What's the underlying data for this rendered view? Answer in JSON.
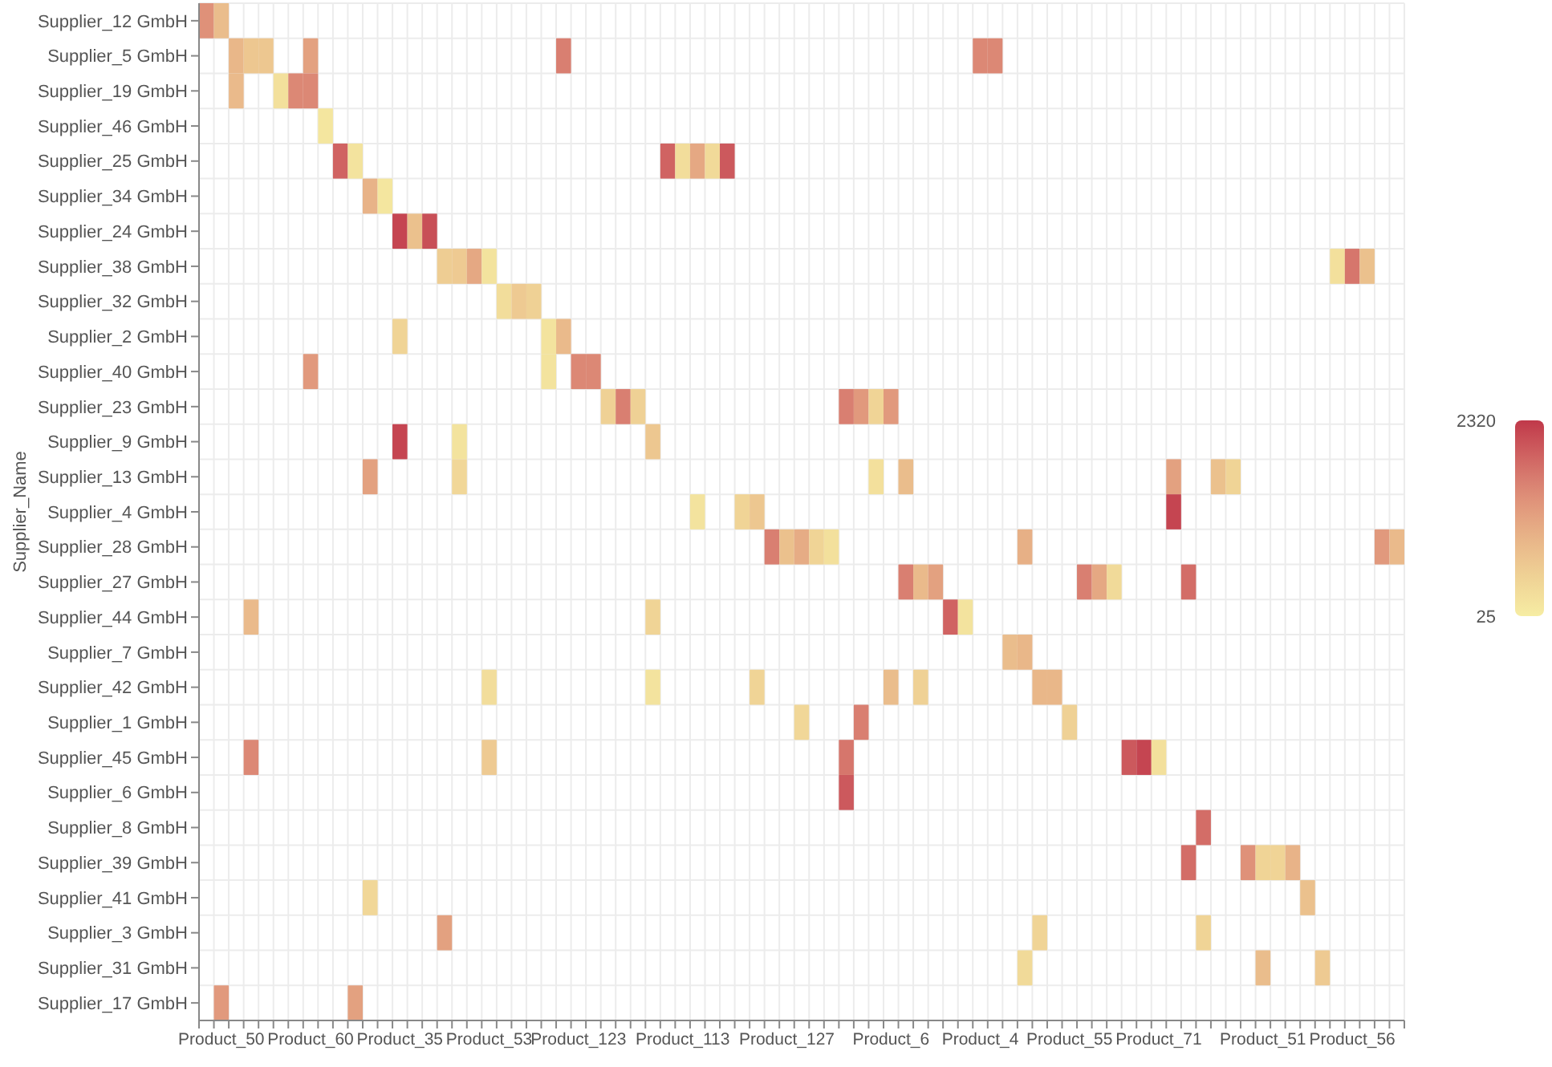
{
  "chart_data": {
    "type": "heatmap",
    "ylabel": "Supplier_Name",
    "grid": true,
    "clim": [
      25,
      2320
    ],
    "cticks": [
      25,
      2320
    ],
    "categories": [
      null,
      "Product_50",
      null,
      null,
      null,
      null,
      null,
      "Product_60",
      null,
      null,
      null,
      null,
      null,
      "Product_35",
      null,
      null,
      null,
      null,
      null,
      "Product_53",
      null,
      null,
      null,
      null,
      null,
      "Product_123",
      null,
      null,
      null,
      null,
      null,
      null,
      "Product_113",
      null,
      null,
      null,
      null,
      null,
      null,
      "Product_127",
      null,
      null,
      null,
      null,
      null,
      null,
      "Product_6",
      null,
      null,
      null,
      null,
      null,
      "Product_4",
      null,
      null,
      null,
      null,
      null,
      "Product_55",
      null,
      null,
      null,
      null,
      null,
      "Product_71",
      null,
      null,
      null,
      null,
      null,
      null,
      "Product_51",
      null,
      null,
      null,
      null,
      null,
      "Product_56",
      null,
      null,
      null
    ],
    "y_categories": [
      "Supplier_12 GmbH",
      "Supplier_5 GmbH",
      "Supplier_19 GmbH",
      "Supplier_46 GmbH",
      "Supplier_25 GmbH",
      "Supplier_34 GmbH",
      "Supplier_24 GmbH",
      "Supplier_38 GmbH",
      "Supplier_32 GmbH",
      "Supplier_2 GmbH",
      "Supplier_40 GmbH",
      "Supplier_23 GmbH",
      "Supplier_9 GmbH",
      "Supplier_13 GmbH",
      "Supplier_4 GmbH",
      "Supplier_28 GmbH",
      "Supplier_27 GmbH",
      "Supplier_44 GmbH",
      "Supplier_7 GmbH",
      "Supplier_42 GmbH",
      "Supplier_1 GmbH",
      "Supplier_45 GmbH",
      "Supplier_6 GmbH",
      "Supplier_8 GmbH",
      "Supplier_39 GmbH",
      "Supplier_41 GmbH",
      "Supplier_3 GmbH",
      "Supplier_31 GmbH",
      "Supplier_17 GmbH"
    ],
    "cells": [
      [
        1400,
        800,
        null,
        null,
        null,
        null,
        null,
        null,
        null,
        null,
        null,
        null,
        null,
        null,
        null,
        null,
        null,
        null,
        null,
        null,
        null,
        null,
        null,
        null,
        null,
        null,
        null,
        null,
        null,
        null,
        null,
        null,
        null,
        null,
        null,
        null,
        null,
        null,
        null,
        null,
        null,
        null,
        null,
        null,
        null,
        null,
        null,
        null,
        null,
        null,
        null,
        null,
        null,
        null,
        null,
        null,
        null,
        null,
        null,
        null,
        null,
        null,
        null,
        null,
        null,
        null,
        null,
        null,
        null,
        null,
        null,
        null,
        null,
        null,
        null,
        null,
        null,
        null,
        null,
        null,
        null
      ],
      [
        null,
        null,
        900,
        650,
        650,
        null,
        null,
        1200,
        null,
        null,
        null,
        null,
        null,
        null,
        null,
        null,
        null,
        null,
        null,
        null,
        null,
        null,
        null,
        null,
        1600,
        null,
        null,
        null,
        null,
        null,
        null,
        null,
        null,
        null,
        null,
        null,
        null,
        null,
        null,
        null,
        null,
        null,
        null,
        null,
        null,
        null,
        null,
        null,
        null,
        null,
        null,
        null,
        1500,
        1500,
        null,
        null,
        null,
        null,
        null,
        null,
        null,
        null,
        null,
        null,
        null,
        null,
        null,
        null,
        null,
        null,
        null,
        null,
        null,
        null,
        null,
        null,
        null,
        null,
        null,
        null,
        null
      ],
      [
        null,
        null,
        850,
        null,
        null,
        250,
        1500,
        1500,
        null,
        null,
        null,
        null,
        null,
        null,
        null,
        null,
        null,
        null,
        null,
        null,
        null,
        null,
        null,
        null,
        null,
        null,
        null,
        null,
        null,
        null,
        null,
        null,
        null,
        null,
        null,
        null,
        null,
        null,
        null,
        null,
        null,
        null,
        null,
        null,
        null,
        null,
        null,
        null,
        null,
        null,
        null,
        null,
        null,
        null,
        null,
        null,
        null,
        null,
        null,
        null,
        null,
        null,
        null,
        null,
        null,
        null,
        null,
        null,
        null,
        null,
        null,
        null,
        null,
        null,
        null,
        null,
        null,
        null,
        null,
        null,
        null
      ],
      [
        null,
        null,
        null,
        null,
        null,
        null,
        null,
        null,
        150,
        null,
        null,
        null,
        null,
        null,
        null,
        null,
        null,
        null,
        null,
        null,
        null,
        null,
        null,
        null,
        null,
        null,
        null,
        null,
        null,
        null,
        null,
        null,
        null,
        null,
        null,
        null,
        null,
        null,
        null,
        null,
        null,
        null,
        null,
        null,
        null,
        null,
        null,
        null,
        null,
        null,
        null,
        null,
        null,
        null,
        null,
        null,
        null,
        null,
        null,
        null,
        null,
        null,
        null,
        null,
        null,
        null,
        null,
        null,
        null,
        null,
        null,
        null,
        null,
        null,
        null,
        null,
        null,
        null,
        null,
        null,
        null
      ],
      [
        null,
        null,
        null,
        null,
        null,
        null,
        null,
        null,
        null,
        1900,
        200,
        null,
        null,
        null,
        null,
        null,
        null,
        null,
        null,
        null,
        null,
        null,
        null,
        null,
        null,
        null,
        null,
        null,
        null,
        null,
        null,
        1900,
        300,
        1100,
        350,
        2000,
        null,
        null,
        null,
        null,
        null,
        null,
        null,
        null,
        null,
        null,
        null,
        null,
        null,
        null,
        null,
        null,
        null,
        null,
        null,
        null,
        null,
        null,
        null,
        null,
        null,
        null,
        null,
        null,
        null,
        null,
        null,
        null,
        null,
        null,
        null,
        null,
        null,
        null,
        null,
        null,
        null,
        null,
        null,
        null,
        null
      ],
      [
        null,
        null,
        null,
        null,
        null,
        null,
        null,
        null,
        null,
        null,
        null,
        950,
        150,
        null,
        null,
        null,
        null,
        null,
        null,
        null,
        null,
        null,
        null,
        null,
        null,
        null,
        null,
        null,
        null,
        null,
        null,
        null,
        null,
        null,
        null,
        null,
        null,
        null,
        null,
        null,
        null,
        null,
        null,
        null,
        null,
        null,
        null,
        null,
        null,
        null,
        null,
        null,
        null,
        null,
        null,
        null,
        null,
        null,
        null,
        null,
        null,
        null,
        null,
        null,
        null,
        null,
        null,
        null,
        null,
        null,
        null,
        null,
        null,
        null,
        null,
        null,
        null,
        null,
        null,
        null,
        null
      ],
      [
        null,
        null,
        null,
        null,
        null,
        null,
        null,
        null,
        null,
        null,
        null,
        null,
        null,
        2200,
        750,
        2100,
        null,
        null,
        null,
        null,
        null,
        null,
        null,
        null,
        null,
        null,
        null,
        null,
        null,
        null,
        null,
        null,
        null,
        null,
        null,
        null,
        null,
        null,
        null,
        null,
        null,
        null,
        null,
        null,
        null,
        null,
        null,
        null,
        null,
        null,
        null,
        null,
        null,
        null,
        null,
        null,
        null,
        null,
        null,
        null,
        null,
        null,
        null,
        null,
        null,
        null,
        null,
        null,
        null,
        null,
        null,
        null,
        null,
        null,
        null,
        null,
        null,
        null,
        null,
        null,
        null
      ],
      [
        null,
        null,
        null,
        null,
        null,
        null,
        null,
        null,
        null,
        null,
        null,
        null,
        null,
        null,
        null,
        null,
        550,
        600,
        1100,
        200,
        null,
        null,
        null,
        null,
        null,
        null,
        null,
        null,
        null,
        null,
        null,
        null,
        null,
        null,
        null,
        null,
        null,
        null,
        null,
        null,
        null,
        null,
        null,
        null,
        null,
        null,
        null,
        null,
        null,
        null,
        null,
        null,
        null,
        null,
        null,
        null,
        null,
        null,
        null,
        null,
        null,
        null,
        null,
        null,
        null,
        null,
        null,
        null,
        null,
        null,
        null,
        null,
        null,
        null,
        null,
        null,
        250,
        1700,
        750,
        null,
        null
      ],
      [
        null,
        null,
        null,
        null,
        null,
        null,
        null,
        null,
        null,
        null,
        null,
        null,
        null,
        null,
        null,
        null,
        null,
        null,
        null,
        null,
        300,
        600,
        500,
        null,
        null,
        null,
        null,
        null,
        null,
        null,
        null,
        null,
        null,
        null,
        null,
        null,
        null,
        null,
        null,
        null,
        null,
        null,
        null,
        null,
        null,
        null,
        null,
        null,
        null,
        null,
        null,
        null,
        null,
        null,
        null,
        null,
        null,
        null,
        null,
        null,
        null,
        null,
        null,
        null,
        null,
        null,
        null,
        null,
        null,
        null,
        null,
        null,
        null,
        null,
        null,
        null,
        null,
        null,
        null,
        null,
        null
      ],
      [
        null,
        null,
        null,
        null,
        null,
        null,
        null,
        null,
        null,
        null,
        null,
        null,
        null,
        450,
        null,
        null,
        null,
        null,
        null,
        null,
        null,
        null,
        null,
        200,
        850,
        null,
        null,
        null,
        null,
        null,
        null,
        null,
        null,
        null,
        null,
        null,
        null,
        null,
        null,
        null,
        null,
        null,
        null,
        null,
        null,
        null,
        null,
        null,
        null,
        null,
        null,
        null,
        null,
        null,
        null,
        null,
        null,
        null,
        null,
        null,
        null,
        null,
        null,
        null,
        null,
        null,
        null,
        null,
        null,
        null,
        null,
        null,
        null,
        null,
        null,
        null,
        null,
        null,
        null,
        null,
        null
      ],
      [
        null,
        null,
        null,
        null,
        null,
        null,
        null,
        1300,
        null,
        null,
        null,
        null,
        null,
        null,
        null,
        null,
        null,
        null,
        null,
        null,
        null,
        null,
        null,
        200,
        null,
        1500,
        1500,
        null,
        null,
        null,
        null,
        null,
        null,
        null,
        null,
        null,
        null,
        null,
        null,
        null,
        null,
        null,
        null,
        null,
        null,
        null,
        null,
        null,
        null,
        null,
        null,
        null,
        null,
        null,
        null,
        null,
        null,
        null,
        null,
        null,
        null,
        null,
        null,
        null,
        null,
        null,
        null,
        null,
        null,
        null,
        null,
        null,
        null,
        null,
        null,
        null,
        null,
        null,
        null,
        null,
        null
      ],
      [
        null,
        null,
        null,
        null,
        null,
        null,
        null,
        null,
        null,
        null,
        null,
        null,
        null,
        null,
        null,
        null,
        null,
        null,
        null,
        null,
        null,
        null,
        null,
        null,
        null,
        null,
        null,
        500,
        1600,
        500,
        null,
        null,
        null,
        null,
        null,
        null,
        null,
        null,
        null,
        null,
        null,
        null,
        null,
        1600,
        1300,
        450,
        1300,
        null,
        null,
        null,
        null,
        null,
        null,
        null,
        null,
        null,
        null,
        null,
        null,
        null,
        null,
        null,
        null,
        null,
        null,
        null,
        null,
        null,
        null,
        null,
        null,
        null,
        null,
        null,
        null,
        null,
        null,
        null,
        null,
        null,
        null
      ],
      [
        null,
        null,
        null,
        null,
        null,
        null,
        null,
        null,
        null,
        null,
        null,
        null,
        null,
        2200,
        null,
        null,
        null,
        200,
        null,
        null,
        null,
        null,
        null,
        null,
        null,
        null,
        null,
        null,
        null,
        null,
        650,
        null,
        null,
        null,
        null,
        null,
        null,
        null,
        null,
        null,
        null,
        null,
        null,
        null,
        null,
        null,
        null,
        null,
        null,
        null,
        null,
        null,
        null,
        null,
        null,
        null,
        null,
        null,
        null,
        null,
        null,
        null,
        null,
        null,
        null,
        null,
        null,
        null,
        null,
        null,
        null,
        null,
        null,
        null,
        null,
        null,
        null,
        null,
        null,
        null,
        null
      ],
      [
        null,
        null,
        null,
        null,
        null,
        null,
        null,
        null,
        null,
        null,
        null,
        1200,
        null,
        null,
        null,
        null,
        null,
        400,
        null,
        null,
        null,
        null,
        null,
        null,
        null,
        null,
        null,
        null,
        null,
        null,
        null,
        null,
        null,
        null,
        null,
        null,
        null,
        null,
        null,
        null,
        null,
        null,
        null,
        null,
        null,
        250,
        null,
        800,
        null,
        null,
        null,
        null,
        null,
        null,
        null,
        null,
        null,
        null,
        null,
        null,
        null,
        null,
        null,
        null,
        null,
        1200,
        null,
        null,
        750,
        450,
        null,
        null,
        null,
        null,
        null,
        null,
        null,
        null,
        null,
        null,
        null
      ],
      [
        null,
        null,
        null,
        null,
        null,
        null,
        null,
        null,
        null,
        null,
        null,
        null,
        null,
        null,
        null,
        null,
        null,
        null,
        null,
        null,
        null,
        null,
        null,
        null,
        null,
        null,
        null,
        null,
        null,
        null,
        null,
        null,
        null,
        200,
        null,
        null,
        450,
        650,
        null,
        null,
        null,
        null,
        null,
        null,
        null,
        null,
        null,
        null,
        null,
        null,
        null,
        null,
        null,
        null,
        null,
        null,
        null,
        null,
        null,
        null,
        null,
        null,
        null,
        null,
        null,
        2200,
        null,
        null,
        null,
        null,
        null,
        null,
        null,
        null,
        null,
        null,
        null,
        null,
        null,
        null,
        null
      ],
      [
        null,
        null,
        null,
        null,
        null,
        null,
        null,
        null,
        null,
        null,
        null,
        null,
        null,
        null,
        null,
        null,
        null,
        null,
        null,
        null,
        null,
        null,
        null,
        null,
        null,
        null,
        null,
        null,
        null,
        null,
        null,
        null,
        null,
        null,
        null,
        null,
        null,
        null,
        1600,
        750,
        1050,
        450,
        250,
        null,
        null,
        null,
        null,
        null,
        null,
        null,
        null,
        null,
        null,
        null,
        null,
        1000,
        null,
        null,
        null,
        null,
        null,
        null,
        null,
        null,
        null,
        null,
        null,
        null,
        null,
        null,
        null,
        null,
        null,
        null,
        null,
        null,
        null,
        null,
        null,
        1300,
        850
      ],
      [
        null,
        null,
        null,
        null,
        null,
        null,
        null,
        null,
        null,
        null,
        null,
        null,
        null,
        null,
        null,
        null,
        null,
        null,
        null,
        null,
        null,
        null,
        null,
        null,
        null,
        null,
        null,
        null,
        null,
        null,
        null,
        null,
        null,
        null,
        null,
        null,
        null,
        null,
        null,
        null,
        null,
        null,
        null,
        null,
        null,
        null,
        null,
        1600,
        850,
        1200,
        null,
        null,
        null,
        null,
        null,
        null,
        null,
        null,
        null,
        1600,
        1100,
        350,
        null,
        null,
        null,
        null,
        1800,
        null,
        null,
        null,
        null,
        null,
        null,
        null,
        null,
        null,
        null,
        null,
        null,
        null,
        null
      ],
      [
        null,
        null,
        null,
        850,
        null,
        null,
        null,
        null,
        null,
        null,
        null,
        null,
        null,
        null,
        null,
        null,
        null,
        null,
        null,
        null,
        null,
        null,
        null,
        null,
        null,
        null,
        null,
        null,
        null,
        null,
        450,
        null,
        null,
        null,
        null,
        null,
        null,
        null,
        null,
        null,
        null,
        null,
        null,
        null,
        null,
        null,
        null,
        null,
        null,
        null,
        1900,
        200,
        null,
        null,
        null,
        null,
        null,
        null,
        null,
        null,
        null,
        null,
        null,
        null,
        null,
        null,
        null,
        null,
        null,
        null,
        null,
        null,
        null,
        null,
        null,
        null,
        null,
        null,
        null,
        null,
        null
      ],
      [
        null,
        null,
        null,
        null,
        null,
        null,
        null,
        null,
        null,
        null,
        null,
        null,
        null,
        null,
        null,
        null,
        null,
        null,
        null,
        null,
        null,
        null,
        null,
        null,
        null,
        null,
        null,
        null,
        null,
        null,
        null,
        null,
        null,
        null,
        null,
        null,
        null,
        null,
        null,
        null,
        null,
        null,
        null,
        null,
        null,
        null,
        null,
        null,
        null,
        null,
        null,
        null,
        null,
        null,
        800,
        900,
        null,
        null,
        null,
        null,
        null,
        null,
        null,
        null,
        null,
        null,
        null,
        null,
        null,
        null,
        null,
        null,
        null,
        null,
        null,
        null,
        null,
        null,
        null,
        null,
        null
      ],
      [
        null,
        null,
        null,
        null,
        null,
        null,
        null,
        null,
        null,
        null,
        null,
        null,
        null,
        null,
        null,
        null,
        null,
        null,
        null,
        300,
        null,
        null,
        null,
        null,
        null,
        null,
        null,
        null,
        null,
        null,
        200,
        null,
        null,
        null,
        null,
        null,
        null,
        450,
        null,
        null,
        null,
        null,
        null,
        null,
        null,
        null,
        800,
        null,
        500,
        null,
        null,
        null,
        null,
        null,
        null,
        null,
        900,
        900,
        null,
        null,
        null,
        null,
        null,
        null,
        null,
        null,
        null,
        null,
        null,
        null,
        null,
        null,
        null,
        null,
        null,
        null,
        null,
        null,
        null,
        null,
        null
      ],
      [
        null,
        null,
        null,
        null,
        null,
        null,
        null,
        null,
        null,
        null,
        null,
        null,
        null,
        null,
        null,
        null,
        null,
        null,
        null,
        null,
        null,
        null,
        null,
        null,
        null,
        null,
        null,
        null,
        null,
        null,
        null,
        null,
        null,
        null,
        null,
        null,
        null,
        null,
        null,
        null,
        400,
        null,
        null,
        null,
        1600,
        null,
        null,
        null,
        null,
        null,
        null,
        null,
        null,
        null,
        null,
        null,
        null,
        null,
        500,
        null,
        null,
        null,
        null,
        null,
        null,
        null,
        null,
        null,
        null,
        null,
        null,
        null,
        null,
        null,
        null,
        null,
        null,
        null,
        null,
        null,
        null
      ],
      [
        null,
        null,
        null,
        1500,
        null,
        null,
        null,
        null,
        null,
        null,
        null,
        null,
        null,
        null,
        null,
        null,
        null,
        null,
        null,
        600,
        null,
        null,
        null,
        null,
        null,
        null,
        null,
        null,
        null,
        null,
        null,
        null,
        null,
        null,
        null,
        null,
        null,
        null,
        null,
        null,
        null,
        null,
        null,
        1700,
        null,
        null,
        null,
        null,
        null,
        null,
        null,
        null,
        null,
        null,
        null,
        null,
        null,
        null,
        null,
        null,
        null,
        null,
        2000,
        2200,
        250,
        null,
        null,
        null,
        null,
        null,
        null,
        null,
        null,
        null,
        null,
        null,
        null,
        null,
        null,
        null,
        null
      ],
      [
        null,
        null,
        null,
        null,
        null,
        null,
        null,
        null,
        null,
        null,
        null,
        null,
        null,
        null,
        null,
        null,
        null,
        null,
        null,
        null,
        null,
        null,
        null,
        null,
        null,
        null,
        null,
        null,
        null,
        null,
        null,
        null,
        null,
        null,
        null,
        null,
        null,
        null,
        null,
        null,
        null,
        null,
        null,
        2000,
        null,
        null,
        null,
        null,
        null,
        null,
        null,
        null,
        null,
        null,
        null,
        null,
        null,
        null,
        null,
        null,
        null,
        null,
        null,
        null,
        null,
        null,
        null,
        null,
        null,
        null,
        null,
        null,
        null,
        null,
        null,
        null,
        null,
        null,
        null,
        null,
        null
      ],
      [
        null,
        null,
        null,
        null,
        null,
        null,
        null,
        null,
        null,
        null,
        null,
        null,
        null,
        null,
        null,
        null,
        null,
        null,
        null,
        null,
        null,
        null,
        null,
        null,
        null,
        null,
        null,
        null,
        null,
        null,
        null,
        null,
        null,
        null,
        null,
        null,
        null,
        null,
        null,
        null,
        null,
        null,
        null,
        null,
        null,
        null,
        null,
        null,
        null,
        null,
        null,
        null,
        null,
        null,
        null,
        null,
        null,
        null,
        null,
        null,
        null,
        null,
        null,
        null,
        null,
        null,
        null,
        1800,
        null,
        null,
        null,
        null,
        null,
        null,
        null,
        null,
        null,
        null,
        null,
        null,
        null
      ],
      [
        null,
        null,
        null,
        null,
        null,
        null,
        null,
        null,
        null,
        null,
        null,
        null,
        null,
        null,
        null,
        null,
        null,
        null,
        null,
        null,
        null,
        null,
        null,
        null,
        null,
        null,
        null,
        null,
        null,
        null,
        null,
        null,
        null,
        null,
        null,
        null,
        null,
        null,
        null,
        null,
        null,
        null,
        null,
        null,
        null,
        null,
        null,
        null,
        null,
        null,
        null,
        null,
        null,
        null,
        null,
        null,
        null,
        null,
        null,
        null,
        null,
        null,
        null,
        null,
        null,
        null,
        1800,
        null,
        null,
        null,
        1400,
        450,
        450,
        950,
        null,
        null,
        null,
        null,
        null,
        null,
        null
      ],
      [
        null,
        null,
        null,
        null,
        null,
        null,
        null,
        null,
        null,
        null,
        null,
        400,
        null,
        null,
        null,
        null,
        null,
        null,
        null,
        null,
        null,
        null,
        null,
        null,
        null,
        null,
        null,
        null,
        null,
        null,
        null,
        null,
        null,
        null,
        null,
        null,
        null,
        null,
        null,
        null,
        null,
        null,
        null,
        null,
        null,
        null,
        null,
        null,
        null,
        null,
        null,
        null,
        null,
        null,
        null,
        null,
        null,
        null,
        null,
        null,
        null,
        null,
        null,
        null,
        null,
        null,
        null,
        null,
        null,
        null,
        null,
        null,
        null,
        null,
        750,
        null,
        null,
        null,
        null,
        null,
        null
      ],
      [
        null,
        null,
        null,
        null,
        null,
        null,
        null,
        null,
        null,
        null,
        null,
        null,
        null,
        null,
        null,
        null,
        1200,
        null,
        null,
        null,
        null,
        null,
        null,
        null,
        null,
        null,
        null,
        null,
        null,
        null,
        null,
        null,
        null,
        null,
        null,
        null,
        null,
        null,
        null,
        null,
        null,
        null,
        null,
        null,
        null,
        null,
        null,
        null,
        null,
        null,
        null,
        null,
        null,
        null,
        null,
        null,
        450,
        null,
        null,
        null,
        null,
        null,
        null,
        null,
        null,
        null,
        null,
        450,
        null,
        null,
        null,
        null,
        null,
        null,
        null,
        null,
        null,
        null,
        null,
        null,
        null
      ],
      [
        null,
        null,
        null,
        null,
        null,
        null,
        null,
        null,
        null,
        null,
        null,
        null,
        null,
        null,
        null,
        null,
        null,
        null,
        null,
        null,
        null,
        null,
        null,
        null,
        null,
        null,
        null,
        null,
        null,
        null,
        null,
        null,
        null,
        null,
        null,
        null,
        null,
        null,
        null,
        null,
        null,
        null,
        null,
        null,
        null,
        null,
        null,
        null,
        null,
        null,
        null,
        null,
        null,
        null,
        null,
        350,
        null,
        null,
        null,
        null,
        null,
        null,
        null,
        null,
        null,
        null,
        null,
        null,
        null,
        null,
        null,
        800,
        null,
        null,
        null,
        600,
        null,
        null,
        null,
        null,
        null
      ],
      [
        null,
        1300,
        null,
        null,
        null,
        null,
        null,
        null,
        null,
        null,
        1200,
        null,
        null,
        null,
        null,
        null,
        null,
        null,
        null,
        null,
        null,
        null,
        null,
        null,
        null,
        null,
        null,
        null,
        null,
        null,
        null,
        null,
        null,
        null,
        null,
        null,
        null,
        null,
        null,
        null,
        null,
        null,
        null,
        null,
        null,
        null,
        null,
        null,
        null,
        null,
        null,
        null,
        null,
        null,
        null,
        null,
        null,
        null,
        null,
        null,
        null,
        null,
        null,
        null,
        null,
        null,
        null,
        null,
        null,
        null,
        null,
        null,
        null,
        null,
        null,
        null,
        null,
        null,
        null,
        null,
        null
      ]
    ]
  }
}
